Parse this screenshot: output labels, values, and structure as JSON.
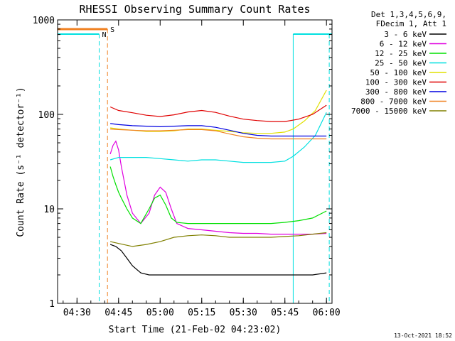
{
  "chart_data": {
    "type": "line",
    "title": "RHESSI Observing Summary Count Rates",
    "xlabel": "Start Time (21-Feb-02 04:23:02)",
    "ylabel": "Count Rate (s⁻¹ detector⁻¹)",
    "x_range": [
      "04:23",
      "06:02"
    ],
    "y_scale": "log",
    "ylim": [
      1,
      1000
    ],
    "x_ticks": [
      "04:30",
      "04:45",
      "05:00",
      "05:15",
      "05:30",
      "05:45",
      "06:00"
    ],
    "y_ticks": [
      "1",
      "10",
      "100",
      "1000"
    ],
    "legend_header": [
      "Det 1,3,4,5,6,9,",
      "FDecim 1, Att 1"
    ],
    "legend_position": "right",
    "footer_timestamp": "13-Oct-2021 18:52",
    "flags": {
      "s_label": "S",
      "n_label": "N",
      "saa_color": "#f08020",
      "night_color": "#00e0e0",
      "saa_end": "04:41",
      "night_end": "04:38",
      "night_start_2": "05:48",
      "saa_start_2": "06:01"
    },
    "series": [
      {
        "name": "3 - 6 keV",
        "color": "#000000",
        "x": [
          "04:42",
          "04:44",
          "04:46",
          "04:48",
          "04:50",
          "04:53",
          "04:56",
          "05:00",
          "05:05",
          "05:10",
          "05:15",
          "05:20",
          "05:25",
          "05:30",
          "05:35",
          "05:40",
          "05:45",
          "05:50",
          "05:55",
          "06:00"
        ],
        "y": [
          4.2,
          4.0,
          3.6,
          3.0,
          2.5,
          2.1,
          2.0,
          2.0,
          2.0,
          2.0,
          2.0,
          2.0,
          2.0,
          2.0,
          2.0,
          2.0,
          2.0,
          2.0,
          2.0,
          2.1
        ]
      },
      {
        "name": "6 - 12 keV",
        "color": "#e000e0",
        "x": [
          "04:42",
          "04:43",
          "04:44",
          "04:45",
          "04:46",
          "04:48",
          "04:50",
          "04:53",
          "04:56",
          "04:58",
          "05:00",
          "05:02",
          "05:04",
          "05:06",
          "05:10",
          "05:15",
          "05:20",
          "05:25",
          "05:30",
          "05:35",
          "05:40",
          "05:45",
          "05:50",
          "05:55",
          "06:00"
        ],
        "y": [
          38,
          47,
          52,
          42,
          28,
          14,
          9,
          7,
          9,
          14,
          17,
          15,
          10,
          7,
          6.2,
          6.0,
          5.8,
          5.6,
          5.5,
          5.5,
          5.4,
          5.4,
          5.4,
          5.4,
          5.5
        ]
      },
      {
        "name": "12 - 25 keV",
        "color": "#00e000",
        "x": [
          "04:42",
          "04:43",
          "04:44",
          "04:45",
          "04:46",
          "04:48",
          "04:50",
          "04:53",
          "04:56",
          "04:58",
          "05:00",
          "05:02",
          "05:04",
          "05:06",
          "05:10",
          "05:15",
          "05:20",
          "05:25",
          "05:30",
          "05:35",
          "05:40",
          "05:45",
          "05:50",
          "05:55",
          "06:00"
        ],
        "y": [
          28,
          22,
          18,
          15,
          13,
          10,
          8,
          7,
          10,
          13,
          14,
          11,
          8,
          7.2,
          7.0,
          7.0,
          7.0,
          7.0,
          7.0,
          7.0,
          7.0,
          7.2,
          7.5,
          8.0,
          9.5
        ]
      },
      {
        "name": "25 - 50 keV",
        "color": "#00e0e0",
        "x": [
          "04:42",
          "04:45",
          "04:50",
          "04:55",
          "05:00",
          "05:05",
          "05:10",
          "05:15",
          "05:20",
          "05:25",
          "05:30",
          "05:35",
          "05:40",
          "05:45",
          "05:48",
          "05:52",
          "05:56",
          "06:00"
        ],
        "y": [
          33,
          35,
          35,
          35,
          34,
          33,
          32,
          33,
          33,
          32,
          31,
          31,
          31,
          32,
          36,
          45,
          60,
          105
        ]
      },
      {
        "name": "50 - 100 keV",
        "color": "#e0e000",
        "x": [
          "04:42",
          "04:45",
          "04:50",
          "04:55",
          "05:00",
          "05:05",
          "05:10",
          "05:15",
          "05:20",
          "05:25",
          "05:30",
          "05:35",
          "05:40",
          "05:45",
          "05:48",
          "05:52",
          "05:56",
          "06:00"
        ],
        "y": [
          72,
          70,
          68,
          66,
          66,
          67,
          70,
          70,
          68,
          66,
          64,
          63,
          63,
          65,
          70,
          85,
          110,
          180
        ]
      },
      {
        "name": "100 - 300 keV",
        "color": "#e00000",
        "x": [
          "04:42",
          "04:45",
          "04:50",
          "04:55",
          "05:00",
          "05:05",
          "05:10",
          "05:15",
          "05:20",
          "05:25",
          "05:30",
          "05:35",
          "05:40",
          "05:45",
          "05:50",
          "05:55",
          "06:00"
        ],
        "y": [
          120,
          110,
          104,
          98,
          95,
          99,
          106,
          110,
          105,
          96,
          89,
          86,
          84,
          84,
          89,
          100,
          125
        ]
      },
      {
        "name": "300 - 800 keV",
        "color": "#0000e0",
        "x": [
          "04:42",
          "04:45",
          "04:50",
          "04:55",
          "05:00",
          "05:05",
          "05:10",
          "05:15",
          "05:20",
          "05:25",
          "05:30",
          "05:35",
          "05:40",
          "05:45",
          "05:50",
          "05:55",
          "06:00"
        ],
        "y": [
          80,
          78,
          76,
          75,
          74,
          75,
          76,
          76,
          73,
          68,
          63,
          60,
          59,
          59,
          59,
          59,
          59
        ]
      },
      {
        "name": "800 - 7000 keV",
        "color": "#f08020",
        "x": [
          "04:42",
          "04:45",
          "04:50",
          "04:55",
          "05:00",
          "05:05",
          "05:10",
          "05:15",
          "05:20",
          "05:25",
          "05:30",
          "05:35",
          "05:40",
          "05:45",
          "05:50",
          "05:55",
          "06:00"
        ],
        "y": [
          70,
          69,
          68,
          67,
          67,
          68,
          69,
          69,
          67,
          62,
          58,
          56,
          55,
          55,
          55,
          55,
          55
        ]
      },
      {
        "name": "7000 - 15000 keV",
        "color": "#808000",
        "x": [
          "04:42",
          "04:45",
          "04:50",
          "04:55",
          "05:00",
          "05:05",
          "05:10",
          "05:15",
          "05:20",
          "05:25",
          "05:30",
          "05:35",
          "05:40",
          "05:45",
          "05:50",
          "05:55",
          "06:00"
        ],
        "y": [
          4.5,
          4.3,
          4.0,
          4.2,
          4.5,
          5.0,
          5.2,
          5.3,
          5.2,
          5.0,
          5.0,
          5.0,
          5.0,
          5.1,
          5.2,
          5.4,
          5.6
        ]
      }
    ]
  }
}
